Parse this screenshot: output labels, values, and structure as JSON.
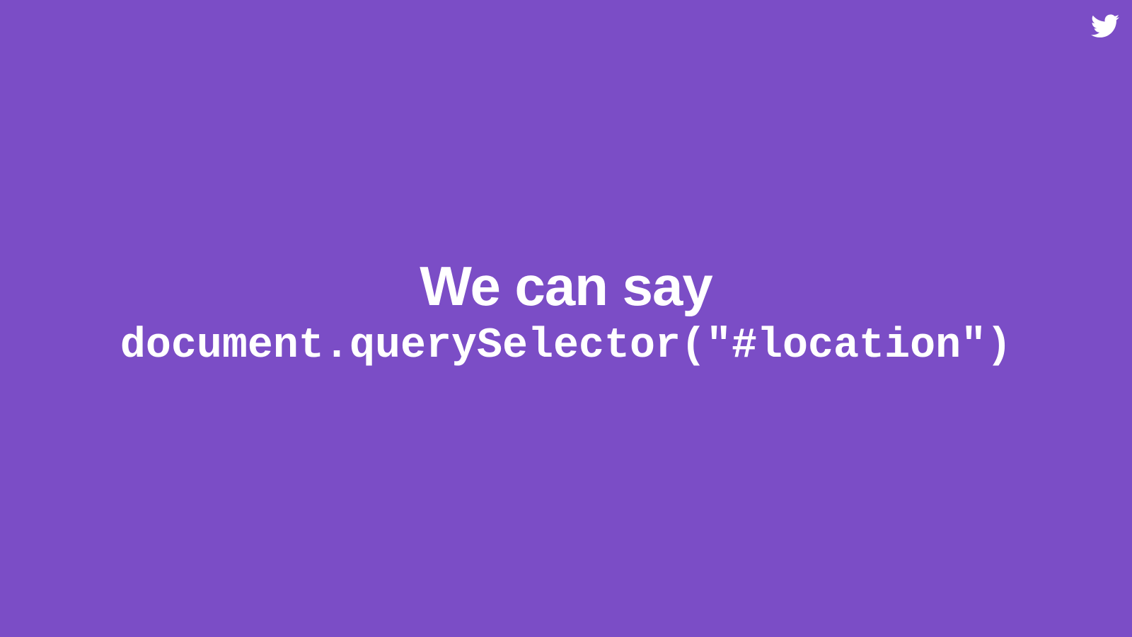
{
  "slide": {
    "heading": "We can say",
    "code": "document.querySelector(\"#location\")",
    "corner_icon": "twitter-icon"
  },
  "colors": {
    "background": "#7b4dc6",
    "text": "#ffffff"
  }
}
